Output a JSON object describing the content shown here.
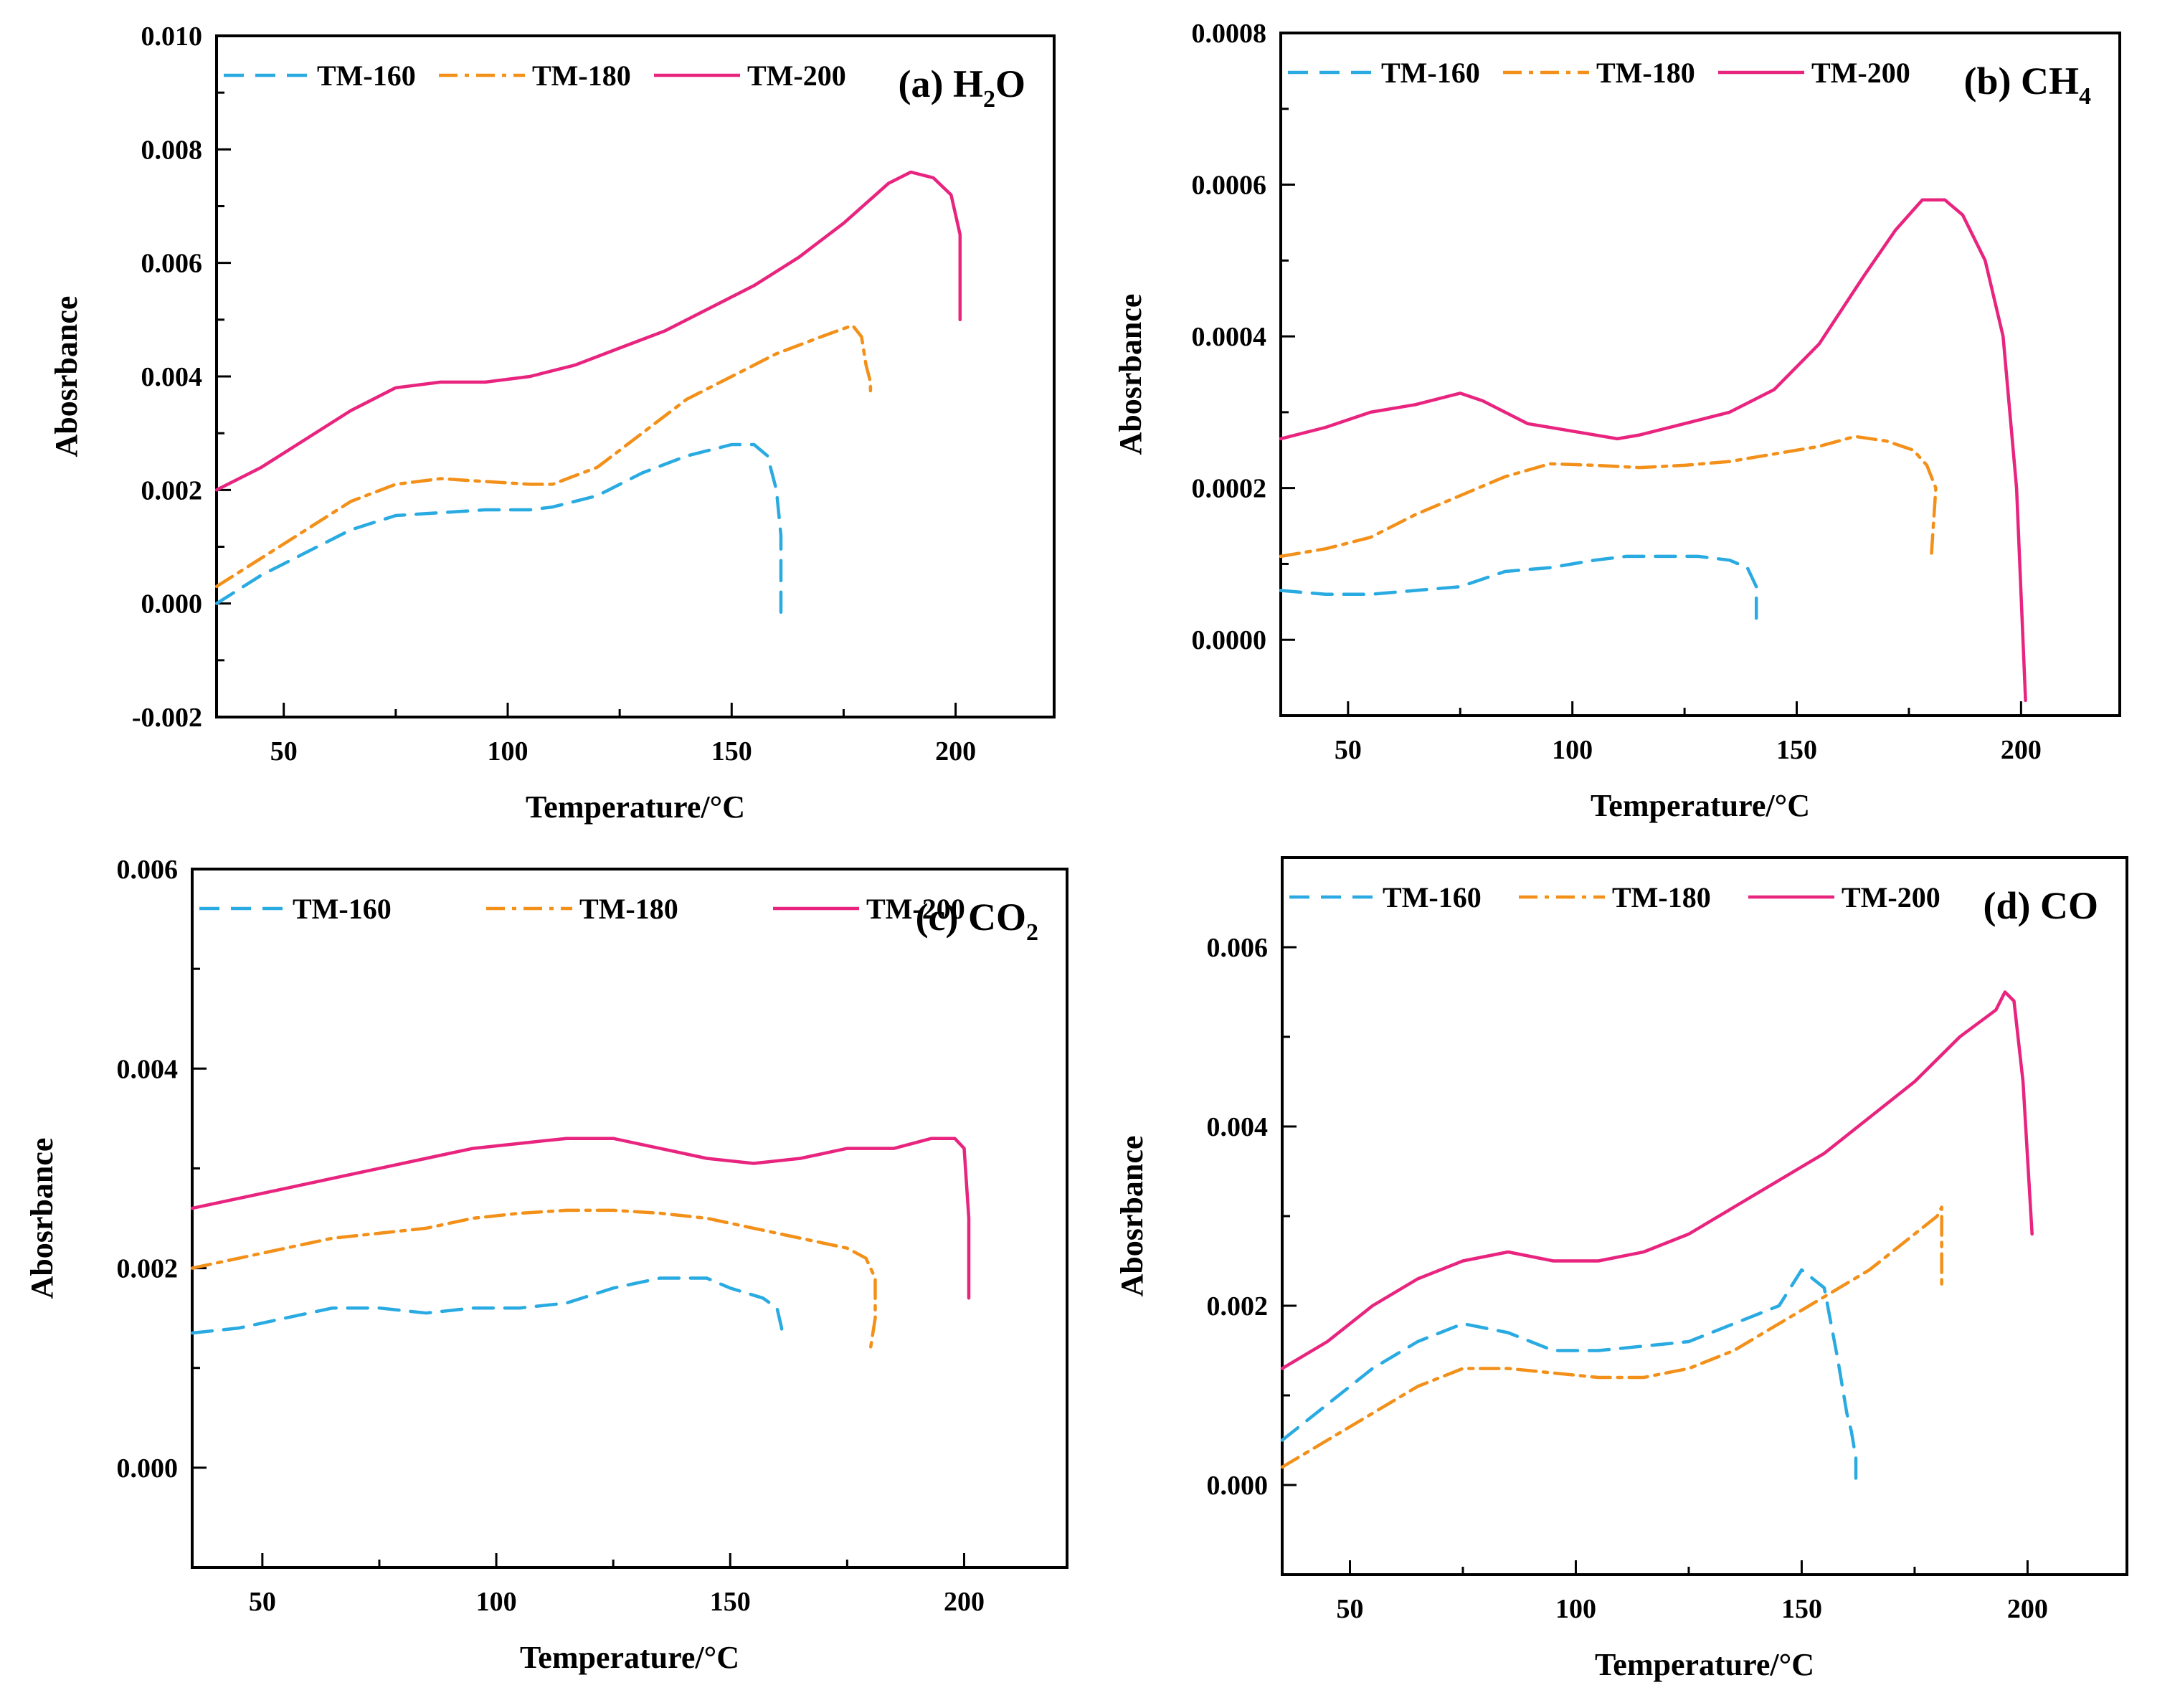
{
  "figure": {
    "styles": {
      "TM-160": {
        "color": "#29abe2",
        "dash": "28,16"
      },
      "TM-180": {
        "color": "#f39019",
        "dash": "26,10,6,10"
      },
      "TM-200": {
        "color": "#e8247f",
        "dash": ""
      }
    }
  },
  "chart_data": [
    {
      "type": "line",
      "title": "(a) H2O",
      "title_main": "(a) H",
      "title_sub": "2",
      "title_tail": "O",
      "xlabel": "Temperature/°C",
      "ylabel": "Abosrbance",
      "xlim": [
        35,
        222
      ],
      "ylim": [
        -0.002,
        0.01
      ],
      "xticks": [
        50,
        100,
        150,
        200
      ],
      "xtick_labels": [
        "50",
        "100",
        "150",
        "200"
      ],
      "yticks": [
        -0.002,
        0.0,
        0.002,
        0.004,
        0.006,
        0.008,
        0.01
      ],
      "ytick_labels": [
        "-0.002",
        "0.000",
        "0.002",
        "0.004",
        "0.006",
        "0.008",
        "0.010"
      ],
      "legend": [
        "TM-160",
        "TM-180",
        "TM-200"
      ],
      "series": [
        {
          "name": "TM-160",
          "x": [
            35,
            45,
            55,
            65,
            75,
            85,
            95,
            105,
            110,
            120,
            130,
            140,
            150,
            155,
            158,
            160,
            161,
            161,
            161
          ],
          "y": [
            0.0,
            0.0005,
            0.0009,
            0.0013,
            0.00155,
            0.0016,
            0.00165,
            0.00165,
            0.0017,
            0.0019,
            0.0023,
            0.0026,
            0.0028,
            0.0028,
            0.0026,
            0.002,
            0.0012,
            0.0005,
            -0.0002
          ]
        },
        {
          "name": "TM-180",
          "x": [
            35,
            45,
            55,
            65,
            75,
            85,
            95,
            105,
            110,
            120,
            130,
            140,
            150,
            160,
            170,
            177,
            179,
            180,
            181,
            181
          ],
          "y": [
            0.0003,
            0.0008,
            0.0013,
            0.0018,
            0.0021,
            0.0022,
            0.00215,
            0.0021,
            0.0021,
            0.0024,
            0.003,
            0.0036,
            0.004,
            0.0044,
            0.0047,
            0.0049,
            0.0047,
            0.0042,
            0.0039,
            0.0037
          ]
        },
        {
          "name": "TM-200",
          "x": [
            35,
            45,
            55,
            65,
            75,
            85,
            95,
            105,
            115,
            125,
            135,
            145,
            155,
            165,
            175,
            185,
            190,
            195,
            199,
            201,
            201
          ],
          "y": [
            0.002,
            0.0024,
            0.0029,
            0.0034,
            0.0038,
            0.0039,
            0.0039,
            0.004,
            0.0042,
            0.0045,
            0.0048,
            0.0052,
            0.0056,
            0.0061,
            0.0067,
            0.0074,
            0.0076,
            0.0075,
            0.0072,
            0.0065,
            0.005
          ]
        }
      ]
    },
    {
      "type": "line",
      "title": "(b) CH4",
      "title_main": "(b) CH",
      "title_sub": "4",
      "title_tail": "",
      "xlabel": "Temperature/°C",
      "ylabel": "Abosrbance",
      "xlim": [
        35,
        222
      ],
      "ylim": [
        -0.0001,
        0.0008
      ],
      "xticks": [
        50,
        100,
        150,
        200
      ],
      "xtick_labels": [
        "50",
        "100",
        "150",
        "200"
      ],
      "yticks": [
        0.0,
        0.0002,
        0.0004,
        0.0006,
        0.0008
      ],
      "ytick_labels": [
        "0.0000",
        "0.0002",
        "0.0004",
        "0.0006",
        "0.0008"
      ],
      "legend": [
        "TM-160",
        "TM-180",
        "TM-200"
      ],
      "series": [
        {
          "name": "TM-160",
          "x": [
            35,
            45,
            55,
            65,
            75,
            85,
            95,
            105,
            112,
            120,
            128,
            135,
            139,
            141,
            141
          ],
          "y": [
            6.5e-05,
            6e-05,
            6e-05,
            6.5e-05,
            7e-05,
            9e-05,
            9.5e-05,
            0.000105,
            0.00011,
            0.00011,
            0.00011,
            0.000105,
            9.5e-05,
            7e-05,
            2.5e-05
          ]
        },
        {
          "name": "TM-180",
          "x": [
            35,
            45,
            55,
            65,
            75,
            85,
            95,
            105,
            115,
            125,
            135,
            145,
            155,
            163,
            170,
            176,
            179,
            181,
            180
          ],
          "y": [
            0.00011,
            0.00012,
            0.000135,
            0.000165,
            0.00019,
            0.000215,
            0.000232,
            0.00023,
            0.000227,
            0.00023,
            0.000235,
            0.000245,
            0.000255,
            0.000268,
            0.000262,
            0.00025,
            0.00023,
            0.0002,
            0.00011
          ]
        },
        {
          "name": "TM-200",
          "x": [
            35,
            45,
            55,
            65,
            75,
            80,
            90,
            100,
            110,
            115,
            125,
            135,
            145,
            155,
            165,
            172,
            178,
            183,
            187,
            192,
            196,
            199,
            201
          ],
          "y": [
            0.000265,
            0.00028,
            0.0003,
            0.00031,
            0.000325,
            0.000315,
            0.000285,
            0.000275,
            0.000265,
            0.00027,
            0.000285,
            0.0003,
            0.00033,
            0.00039,
            0.00048,
            0.00054,
            0.00058,
            0.00058,
            0.00056,
            0.0005,
            0.0004,
            0.0002,
            -8e-05
          ]
        }
      ]
    },
    {
      "type": "line",
      "title": "(c) CO2",
      "title_main": "(c) CO",
      "title_sub": "2",
      "title_tail": "",
      "xlabel": "Temperature/°C",
      "ylabel": "Abosrbance",
      "xlim": [
        35,
        222
      ],
      "ylim": [
        -0.001,
        0.006
      ],
      "xticks": [
        50,
        100,
        150,
        200
      ],
      "xtick_labels": [
        "50",
        "100",
        "150",
        "200"
      ],
      "yticks": [
        0.0,
        0.002,
        0.004,
        0.006
      ],
      "ytick_labels": [
        "0.000",
        "0.002",
        "0.004",
        "0.006"
      ],
      "legend": [
        "TM-160",
        "TM-180",
        "TM-200"
      ],
      "series": [
        {
          "name": "TM-160",
          "x": [
            35,
            45,
            55,
            65,
            75,
            85,
            95,
            105,
            115,
            125,
            135,
            145,
            150,
            157,
            160,
            161,
            161
          ],
          "y": [
            0.00135,
            0.0014,
            0.0015,
            0.0016,
            0.0016,
            0.00155,
            0.0016,
            0.0016,
            0.00165,
            0.0018,
            0.0019,
            0.0019,
            0.0018,
            0.0017,
            0.0016,
            0.0014,
            0.0013
          ]
        },
        {
          "name": "TM-180",
          "x": [
            35,
            45,
            55,
            65,
            75,
            85,
            95,
            105,
            115,
            125,
            135,
            145,
            155,
            165,
            175,
            179,
            181,
            181,
            180
          ],
          "y": [
            0.002,
            0.0021,
            0.0022,
            0.0023,
            0.00235,
            0.0024,
            0.0025,
            0.00255,
            0.00258,
            0.00258,
            0.00255,
            0.0025,
            0.0024,
            0.0023,
            0.0022,
            0.0021,
            0.0019,
            0.0015,
            0.0012
          ]
        },
        {
          "name": "TM-200",
          "x": [
            35,
            45,
            55,
            65,
            75,
            85,
            95,
            105,
            115,
            125,
            135,
            145,
            155,
            165,
            175,
            185,
            193,
            198,
            200,
            201,
            201
          ],
          "y": [
            0.0026,
            0.0027,
            0.0028,
            0.0029,
            0.003,
            0.0031,
            0.0032,
            0.00325,
            0.0033,
            0.0033,
            0.0032,
            0.0031,
            0.00305,
            0.0031,
            0.0032,
            0.0032,
            0.0033,
            0.0033,
            0.0032,
            0.0025,
            0.0017
          ]
        }
      ]
    },
    {
      "type": "line",
      "title": "(d) CO",
      "title_main": "(d) CO",
      "title_sub": "",
      "title_tail": "",
      "xlabel": "Temperature/°C",
      "ylabel": "Abosrbance",
      "xlim": [
        35,
        222
      ],
      "ylim": [
        -0.001,
        0.007
      ],
      "xticks": [
        50,
        100,
        150,
        200
      ],
      "xtick_labels": [
        "50",
        "100",
        "150",
        "200"
      ],
      "yticks": [
        0.0,
        0.002,
        0.004,
        0.006
      ],
      "ytick_labels": [
        "0.000",
        "0.002",
        "0.004",
        "0.006"
      ],
      "legend": [
        "TM-160",
        "TM-180",
        "TM-200"
      ],
      "series": [
        {
          "name": "TM-160",
          "x": [
            35,
            45,
            55,
            65,
            75,
            85,
            95,
            105,
            115,
            125,
            135,
            145,
            150,
            155,
            158,
            160,
            161,
            162,
            162
          ],
          "y": [
            0.0005,
            0.0009,
            0.0013,
            0.0016,
            0.0018,
            0.0017,
            0.0015,
            0.0015,
            0.00155,
            0.0016,
            0.0018,
            0.002,
            0.0024,
            0.0022,
            0.0014,
            0.0008,
            0.0006,
            0.0003,
            0.0
          ]
        },
        {
          "name": "TM-180",
          "x": [
            35,
            45,
            55,
            65,
            75,
            85,
            95,
            105,
            115,
            125,
            135,
            145,
            155,
            165,
            175,
            180,
            181,
            181
          ],
          "y": [
            0.0002,
            0.0005,
            0.0008,
            0.0011,
            0.0013,
            0.0013,
            0.00125,
            0.0012,
            0.0012,
            0.0013,
            0.0015,
            0.0018,
            0.0021,
            0.0024,
            0.0028,
            0.003,
            0.0031,
            0.0022
          ]
        },
        {
          "name": "TM-200",
          "x": [
            35,
            45,
            55,
            65,
            75,
            85,
            95,
            105,
            115,
            125,
            135,
            145,
            155,
            165,
            175,
            185,
            193,
            195,
            197,
            199,
            201
          ],
          "y": [
            0.0013,
            0.0016,
            0.002,
            0.0023,
            0.0025,
            0.0026,
            0.0025,
            0.0025,
            0.0026,
            0.0028,
            0.0031,
            0.0034,
            0.0037,
            0.0041,
            0.0045,
            0.005,
            0.0053,
            0.0055,
            0.0054,
            0.0045,
            0.0028
          ]
        }
      ]
    }
  ]
}
